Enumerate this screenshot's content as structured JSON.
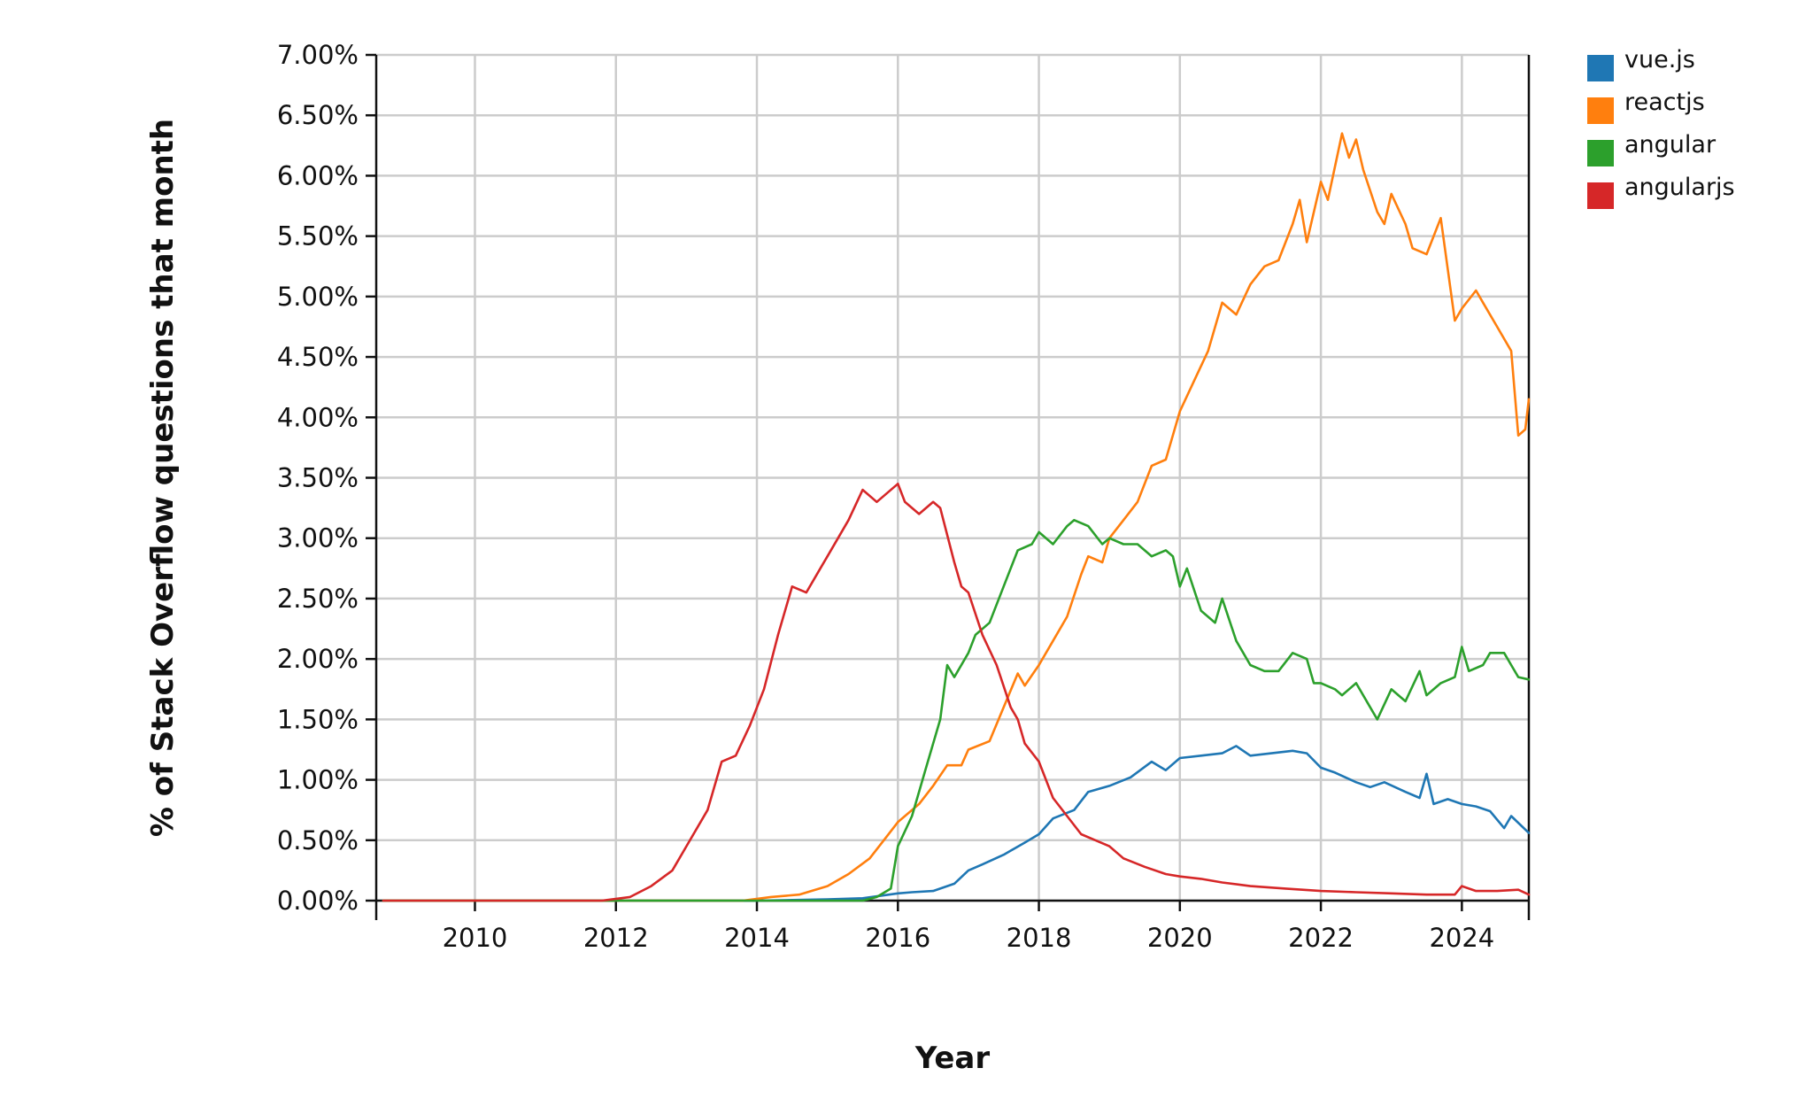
{
  "chart_data": {
    "type": "line",
    "title": "",
    "xlabel": "Year",
    "ylabel": "% of Stack Overflow questions that month",
    "xlim": [
      2008.6,
      2024.95
    ],
    "ylim": [
      0,
      7
    ],
    "x_ticks": [
      2010,
      2012,
      2014,
      2016,
      2018,
      2020,
      2022,
      2024
    ],
    "x_tick_labels": [
      "2010",
      "2012",
      "2014",
      "2016",
      "2018",
      "2020",
      "2022",
      "2024"
    ],
    "y_ticks": [
      0,
      0.5,
      1,
      1.5,
      2,
      2.5,
      3,
      3.5,
      4,
      4.5,
      5,
      5.5,
      6,
      6.5,
      7
    ],
    "y_tick_labels": [
      "0.00%",
      "0.50%",
      "1.00%",
      "1.50%",
      "2.00%",
      "2.50%",
      "3.00%",
      "3.50%",
      "4.00%",
      "4.50%",
      "5.00%",
      "5.50%",
      "6.00%",
      "6.50%",
      "7.00%"
    ],
    "grid": true,
    "legend_position": "top-right",
    "series": [
      {
        "name": "vue.js",
        "color": "#1f77b4",
        "points": [
          [
            2008.7,
            0
          ],
          [
            2014.0,
            0
          ],
          [
            2015.0,
            0.01
          ],
          [
            2015.5,
            0.02
          ],
          [
            2016.0,
            0.06
          ],
          [
            2016.2,
            0.07
          ],
          [
            2016.5,
            0.08
          ],
          [
            2016.8,
            0.14
          ],
          [
            2017.0,
            0.25
          ],
          [
            2017.2,
            0.3
          ],
          [
            2017.5,
            0.38
          ],
          [
            2017.8,
            0.48
          ],
          [
            2018.0,
            0.55
          ],
          [
            2018.2,
            0.68
          ],
          [
            2018.5,
            0.75
          ],
          [
            2018.7,
            0.9
          ],
          [
            2019.0,
            0.95
          ],
          [
            2019.3,
            1.02
          ],
          [
            2019.6,
            1.15
          ],
          [
            2019.8,
            1.08
          ],
          [
            2020.0,
            1.18
          ],
          [
            2020.3,
            1.2
          ],
          [
            2020.6,
            1.22
          ],
          [
            2020.8,
            1.28
          ],
          [
            2021.0,
            1.2
          ],
          [
            2021.3,
            1.22
          ],
          [
            2021.6,
            1.24
          ],
          [
            2021.8,
            1.22
          ],
          [
            2022.0,
            1.1
          ],
          [
            2022.2,
            1.06
          ],
          [
            2022.5,
            0.98
          ],
          [
            2022.7,
            0.94
          ],
          [
            2022.9,
            0.98
          ],
          [
            2023.2,
            0.9
          ],
          [
            2023.4,
            0.85
          ],
          [
            2023.5,
            1.05
          ],
          [
            2023.6,
            0.8
          ],
          [
            2023.8,
            0.84
          ],
          [
            2024.0,
            0.8
          ],
          [
            2024.2,
            0.78
          ],
          [
            2024.4,
            0.74
          ],
          [
            2024.6,
            0.6
          ],
          [
            2024.7,
            0.7
          ],
          [
            2024.95,
            0.56
          ]
        ]
      },
      {
        "name": "reactjs",
        "color": "#ff7f0e",
        "points": [
          [
            2008.7,
            0
          ],
          [
            2013.8,
            0
          ],
          [
            2014.2,
            0.03
          ],
          [
            2014.6,
            0.05
          ],
          [
            2015.0,
            0.12
          ],
          [
            2015.3,
            0.22
          ],
          [
            2015.6,
            0.35
          ],
          [
            2015.8,
            0.5
          ],
          [
            2016.0,
            0.65
          ],
          [
            2016.3,
            0.8
          ],
          [
            2016.5,
            0.95
          ],
          [
            2016.7,
            1.12
          ],
          [
            2016.9,
            1.12
          ],
          [
            2017.0,
            1.25
          ],
          [
            2017.3,
            1.32
          ],
          [
            2017.5,
            1.6
          ],
          [
            2017.7,
            1.88
          ],
          [
            2017.8,
            1.78
          ],
          [
            2018.0,
            1.95
          ],
          [
            2018.2,
            2.15
          ],
          [
            2018.4,
            2.35
          ],
          [
            2018.6,
            2.7
          ],
          [
            2018.7,
            2.85
          ],
          [
            2018.9,
            2.8
          ],
          [
            2019.0,
            3.0
          ],
          [
            2019.2,
            3.15
          ],
          [
            2019.4,
            3.3
          ],
          [
            2019.6,
            3.6
          ],
          [
            2019.8,
            3.65
          ],
          [
            2020.0,
            4.05
          ],
          [
            2020.2,
            4.3
          ],
          [
            2020.4,
            4.55
          ],
          [
            2020.6,
            4.95
          ],
          [
            2020.8,
            4.85
          ],
          [
            2021.0,
            5.1
          ],
          [
            2021.2,
            5.25
          ],
          [
            2021.4,
            5.3
          ],
          [
            2021.6,
            5.6
          ],
          [
            2021.7,
            5.8
          ],
          [
            2021.8,
            5.45
          ],
          [
            2022.0,
            5.95
          ],
          [
            2022.1,
            5.8
          ],
          [
            2022.3,
            6.35
          ],
          [
            2022.4,
            6.15
          ],
          [
            2022.5,
            6.3
          ],
          [
            2022.6,
            6.05
          ],
          [
            2022.8,
            5.7
          ],
          [
            2022.9,
            5.6
          ],
          [
            2023.0,
            5.85
          ],
          [
            2023.2,
            5.6
          ],
          [
            2023.3,
            5.4
          ],
          [
            2023.5,
            5.35
          ],
          [
            2023.7,
            5.65
          ],
          [
            2023.9,
            4.8
          ],
          [
            2024.0,
            4.9
          ],
          [
            2024.2,
            5.05
          ],
          [
            2024.3,
            4.95
          ],
          [
            2024.5,
            4.75
          ],
          [
            2024.7,
            4.55
          ],
          [
            2024.8,
            3.85
          ],
          [
            2024.9,
            3.9
          ],
          [
            2024.95,
            4.15
          ]
        ]
      },
      {
        "name": "angular",
        "color": "#2ca02c",
        "points": [
          [
            2008.7,
            0
          ],
          [
            2015.5,
            0
          ],
          [
            2015.7,
            0.03
          ],
          [
            2015.9,
            0.1
          ],
          [
            2016.0,
            0.45
          ],
          [
            2016.2,
            0.7
          ],
          [
            2016.4,
            1.1
          ],
          [
            2016.6,
            1.5
          ],
          [
            2016.7,
            1.95
          ],
          [
            2016.8,
            1.85
          ],
          [
            2017.0,
            2.05
          ],
          [
            2017.1,
            2.2
          ],
          [
            2017.3,
            2.3
          ],
          [
            2017.5,
            2.6
          ],
          [
            2017.7,
            2.9
          ],
          [
            2017.9,
            2.95
          ],
          [
            2018.0,
            3.05
          ],
          [
            2018.2,
            2.95
          ],
          [
            2018.4,
            3.1
          ],
          [
            2018.5,
            3.15
          ],
          [
            2018.7,
            3.1
          ],
          [
            2018.9,
            2.95
          ],
          [
            2019.0,
            3.0
          ],
          [
            2019.2,
            2.95
          ],
          [
            2019.4,
            2.95
          ],
          [
            2019.6,
            2.85
          ],
          [
            2019.8,
            2.9
          ],
          [
            2019.9,
            2.85
          ],
          [
            2020.0,
            2.6
          ],
          [
            2020.1,
            2.75
          ],
          [
            2020.3,
            2.4
          ],
          [
            2020.5,
            2.3
          ],
          [
            2020.6,
            2.5
          ],
          [
            2020.8,
            2.15
          ],
          [
            2021.0,
            1.95
          ],
          [
            2021.2,
            1.9
          ],
          [
            2021.4,
            1.9
          ],
          [
            2021.6,
            2.05
          ],
          [
            2021.8,
            2.0
          ],
          [
            2021.9,
            1.8
          ],
          [
            2022.0,
            1.8
          ],
          [
            2022.2,
            1.75
          ],
          [
            2022.3,
            1.7
          ],
          [
            2022.5,
            1.8
          ],
          [
            2022.7,
            1.6
          ],
          [
            2022.8,
            1.5
          ],
          [
            2023.0,
            1.75
          ],
          [
            2023.2,
            1.65
          ],
          [
            2023.4,
            1.9
          ],
          [
            2023.5,
            1.7
          ],
          [
            2023.7,
            1.8
          ],
          [
            2023.9,
            1.85
          ],
          [
            2024.0,
            2.1
          ],
          [
            2024.1,
            1.9
          ],
          [
            2024.3,
            1.95
          ],
          [
            2024.4,
            2.05
          ],
          [
            2024.6,
            2.05
          ],
          [
            2024.7,
            1.95
          ],
          [
            2024.8,
            1.85
          ],
          [
            2024.95,
            1.83
          ]
        ]
      },
      {
        "name": "angularjs",
        "color": "#d62728",
        "points": [
          [
            2008.7,
            0
          ],
          [
            2011.8,
            0
          ],
          [
            2012.2,
            0.03
          ],
          [
            2012.5,
            0.12
          ],
          [
            2012.8,
            0.25
          ],
          [
            2013.0,
            0.45
          ],
          [
            2013.3,
            0.75
          ],
          [
            2013.5,
            1.15
          ],
          [
            2013.7,
            1.2
          ],
          [
            2013.9,
            1.45
          ],
          [
            2014.1,
            1.75
          ],
          [
            2014.3,
            2.2
          ],
          [
            2014.5,
            2.6
          ],
          [
            2014.7,
            2.55
          ],
          [
            2014.9,
            2.75
          ],
          [
            2015.0,
            2.85
          ],
          [
            2015.3,
            3.15
          ],
          [
            2015.5,
            3.4
          ],
          [
            2015.7,
            3.3
          ],
          [
            2016.0,
            3.45
          ],
          [
            2016.1,
            3.3
          ],
          [
            2016.3,
            3.2
          ],
          [
            2016.5,
            3.3
          ],
          [
            2016.6,
            3.25
          ],
          [
            2016.8,
            2.8
          ],
          [
            2016.9,
            2.6
          ],
          [
            2017.0,
            2.55
          ],
          [
            2017.2,
            2.2
          ],
          [
            2017.4,
            1.95
          ],
          [
            2017.6,
            1.6
          ],
          [
            2017.7,
            1.5
          ],
          [
            2017.8,
            1.3
          ],
          [
            2018.0,
            1.15
          ],
          [
            2018.2,
            0.85
          ],
          [
            2018.4,
            0.7
          ],
          [
            2018.6,
            0.55
          ],
          [
            2018.8,
            0.5
          ],
          [
            2019.0,
            0.45
          ],
          [
            2019.2,
            0.35
          ],
          [
            2019.5,
            0.28
          ],
          [
            2019.8,
            0.22
          ],
          [
            2020.0,
            0.2
          ],
          [
            2020.3,
            0.18
          ],
          [
            2020.6,
            0.15
          ],
          [
            2021.0,
            0.12
          ],
          [
            2021.5,
            0.1
          ],
          [
            2022.0,
            0.08
          ],
          [
            2022.5,
            0.07
          ],
          [
            2023.0,
            0.06
          ],
          [
            2023.5,
            0.05
          ],
          [
            2023.9,
            0.05
          ],
          [
            2024.0,
            0.12
          ],
          [
            2024.2,
            0.08
          ],
          [
            2024.5,
            0.08
          ],
          [
            2024.8,
            0.09
          ],
          [
            2024.95,
            0.05
          ]
        ]
      }
    ]
  }
}
